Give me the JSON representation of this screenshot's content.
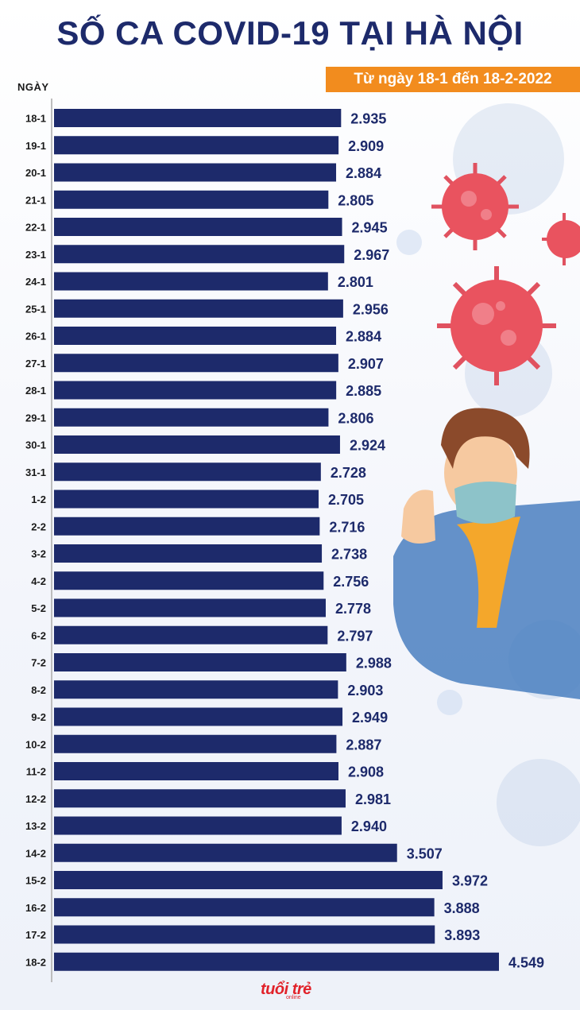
{
  "header": {
    "title": "SỐ CA COVID-19 TẠI HÀ NỘI",
    "subtitle": "Từ ngày 18-1 đến 18-2-2022",
    "y_axis_label": "NGÀY"
  },
  "brand": {
    "logo_text": "tuổi trẻ",
    "logo_sub": "online"
  },
  "colors": {
    "bar": "#1d2a6b",
    "title": "#1d2a6b",
    "accent": "#f28c1e",
    "label": "#1a1a1a"
  },
  "chart_data": {
    "type": "bar",
    "orientation": "horizontal",
    "title": "SỐ CA COVID-19 TẠI HÀ NỘI",
    "subtitle": "Từ ngày 18-1 đến 18-2-2022",
    "ylabel": "NGÀY",
    "xlabel": "",
    "xlim": [
      0,
      5000
    ],
    "grid": false,
    "categories": [
      "18-1",
      "19-1",
      "20-1",
      "21-1",
      "22-1",
      "23-1",
      "24-1",
      "25-1",
      "26-1",
      "27-1",
      "28-1",
      "29-1",
      "30-1",
      "31-1",
      "1-2",
      "2-2",
      "3-2",
      "4-2",
      "5-2",
      "6-2",
      "7-2",
      "8-2",
      "9-2",
      "10-2",
      "11-2",
      "12-2",
      "13-2",
      "14-2",
      "15-2",
      "16-2",
      "17-2",
      "18-2"
    ],
    "values": [
      2935,
      2909,
      2884,
      2805,
      2945,
      2967,
      2801,
      2956,
      2884,
      2907,
      2885,
      2806,
      2924,
      2728,
      2705,
      2716,
      2738,
      2756,
      2778,
      2797,
      2988,
      2903,
      2949,
      2887,
      2908,
      2981,
      2940,
      3507,
      3972,
      3888,
      3893,
      4549
    ],
    "value_labels": [
      "2.935",
      "2.909",
      "2.884",
      "2.805",
      "2.945",
      "2.967",
      "2.801",
      "2.956",
      "2.884",
      "2.907",
      "2.885",
      "2.806",
      "2.924",
      "2.728",
      "2.705",
      "2.716",
      "2.738",
      "2.756",
      "2.778",
      "2.797",
      "2.988",
      "2.903",
      "2.949",
      "2.887",
      "2.908",
      "2.981",
      "2.940",
      "3.507",
      "3.972",
      "3.888",
      "3.893",
      "4.549"
    ]
  }
}
